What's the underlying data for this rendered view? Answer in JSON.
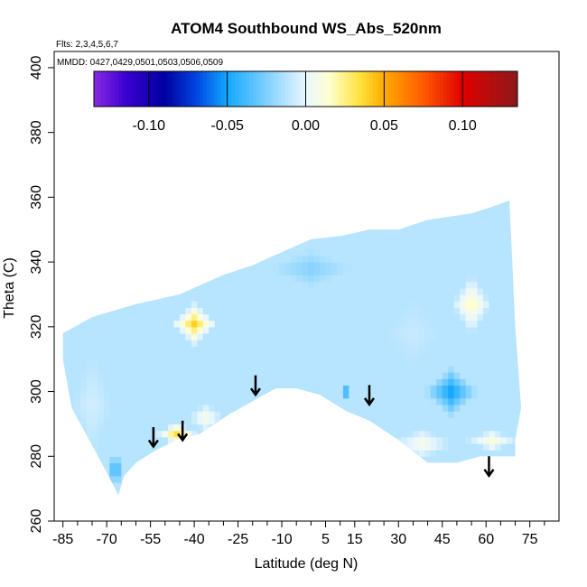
{
  "chart_data": {
    "type": "heatmap",
    "title": "ATOM4 Southbound WS_Abs_520nm",
    "flights_note": "Flts: 2,3,4,5,6,7",
    "dates_note": "MMDD: 0427,0429,0501,0503,0506,0509",
    "xlabel": "Latitude (deg N)",
    "ylabel": "Theta (C)",
    "xlim": [
      -88,
      85
    ],
    "ylim": [
      260,
      405
    ],
    "x_ticks": [
      -85,
      -70,
      -55,
      -40,
      -25,
      -10,
      5,
      15,
      30,
      45,
      60,
      75
    ],
    "x_minor_step": 5,
    "y_ticks": [
      260,
      280,
      300,
      320,
      340,
      360,
      380,
      400
    ],
    "colorbar": {
      "range": [
        -0.135,
        0.135
      ],
      "ticks": [
        -0.1,
        -0.05,
        0,
        0.05,
        0.1
      ],
      "tick_labels": [
        "-0.10",
        "-0.05",
        "0.00",
        "0.05",
        "0.10"
      ],
      "stops": [
        {
          "v": -0.135,
          "color": "#8a2be2"
        },
        {
          "v": -0.115,
          "color": "#3c00d2"
        },
        {
          "v": -0.09,
          "color": "#0000a0"
        },
        {
          "v": -0.07,
          "color": "#0044e0"
        },
        {
          "v": -0.05,
          "color": "#12a8ff"
        },
        {
          "v": -0.025,
          "color": "#7fd0ff"
        },
        {
          "v": 0.0,
          "color": "#eaf7ff"
        },
        {
          "v": 0.015,
          "color": "#ffffd0"
        },
        {
          "v": 0.035,
          "color": "#ffe13a"
        },
        {
          "v": 0.05,
          "color": "#ffaa00"
        },
        {
          "v": 0.075,
          "color": "#ff5a00"
        },
        {
          "v": 0.1,
          "color": "#e00000"
        },
        {
          "v": 0.135,
          "color": "#8b1a1a"
        }
      ]
    },
    "field": {
      "outline": [
        [
          -85,
          318
        ],
        [
          -75,
          323
        ],
        [
          -60,
          327
        ],
        [
          -45,
          330
        ],
        [
          -30,
          336
        ],
        [
          -20,
          339
        ],
        [
          -10,
          343
        ],
        [
          0,
          347
        ],
        [
          10,
          348
        ],
        [
          20,
          350
        ],
        [
          30,
          350
        ],
        [
          40,
          353
        ],
        [
          55,
          355
        ],
        [
          62,
          357
        ],
        [
          68,
          359
        ],
        [
          70,
          320
        ],
        [
          72,
          295
        ],
        [
          70,
          285
        ],
        [
          70,
          280
        ],
        [
          58,
          280
        ],
        [
          50,
          278
        ],
        [
          40,
          278
        ],
        [
          30,
          285
        ],
        [
          20,
          291
        ],
        [
          12,
          294
        ],
        [
          3,
          299
        ],
        [
          -5,
          301
        ],
        [
          -12,
          301
        ],
        [
          -20,
          297
        ],
        [
          -28,
          293
        ],
        [
          -38,
          287
        ],
        [
          -46,
          285
        ],
        [
          -53,
          282
        ],
        [
          -60,
          278
        ],
        [
          -64,
          274
        ],
        [
          -66,
          268
        ],
        [
          -70,
          275
        ],
        [
          -76,
          285
        ],
        [
          -82,
          295
        ],
        [
          -85,
          310
        ]
      ],
      "background": -0.012,
      "blobs": [
        {
          "lat": -40,
          "theta": 321,
          "value": 0.04,
          "lat_radius": 8,
          "theta_radius": 7
        },
        {
          "lat": -46,
          "theta": 287,
          "value": 0.035,
          "lat_radius": 7,
          "theta_radius": 4
        },
        {
          "lat": -36,
          "theta": 292,
          "value": 0.01,
          "lat_radius": 7,
          "theta_radius": 5
        },
        {
          "lat": -75,
          "theta": 296,
          "value": -0.005,
          "lat_radius": 7,
          "theta_radius": 18
        },
        {
          "lat": -67,
          "theta": 276,
          "value": -0.05,
          "lat_radius": 3,
          "theta_radius": 7
        },
        {
          "lat": 48,
          "theta": 300,
          "value": -0.055,
          "lat_radius": 10,
          "theta_radius": 8
        },
        {
          "lat": 55,
          "theta": 327,
          "value": 0.02,
          "lat_radius": 7,
          "theta_radius": 10
        },
        {
          "lat": 12,
          "theta": 300,
          "value": -0.06,
          "lat_radius": 4,
          "theta_radius": 2
        },
        {
          "lat": 38,
          "theta": 284,
          "value": 0.01,
          "lat_radius": 12,
          "theta_radius": 5
        },
        {
          "lat": 62,
          "theta": 285,
          "value": 0.012,
          "lat_radius": 9,
          "theta_radius": 4
        },
        {
          "lat": 0,
          "theta": 338,
          "value": -0.025,
          "lat_radius": 15,
          "theta_radius": 6
        },
        {
          "lat": 35,
          "theta": 318,
          "value": -0.008,
          "lat_radius": 10,
          "theta_radius": 12
        }
      ]
    },
    "arrows": [
      {
        "lat": -54,
        "theta": 286
      },
      {
        "lat": -44,
        "theta": 288
      },
      {
        "lat": -19,
        "theta": 302
      },
      {
        "lat": 20,
        "theta": 299
      },
      {
        "lat": 61,
        "theta": 277
      }
    ]
  }
}
